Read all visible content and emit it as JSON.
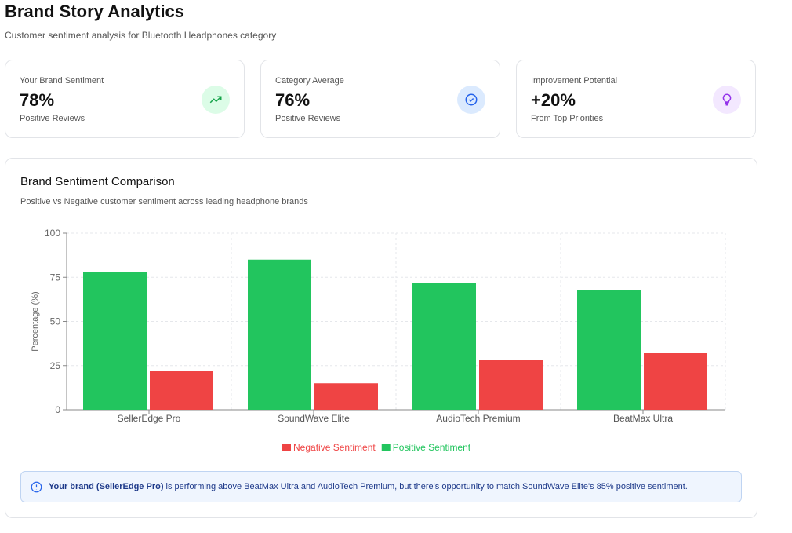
{
  "header": {
    "title": "Brand Story Analytics",
    "subtitle": "Customer sentiment analysis for Bluetooth Headphones category"
  },
  "cards": [
    {
      "label": "Your Brand Sentiment",
      "value": "78%",
      "note": "Positive Reviews",
      "icon": "trending-up-icon",
      "icon_bg": "#dcfce7",
      "icon_color": "#16a34a"
    },
    {
      "label": "Category Average",
      "value": "76%",
      "note": "Positive Reviews",
      "icon": "check-circle-icon",
      "icon_bg": "#dbeafe",
      "icon_color": "#2563eb"
    },
    {
      "label": "Improvement Potential",
      "value": "+20%",
      "note": "From Top Priorities",
      "icon": "lightbulb-icon",
      "icon_bg": "#f3e8ff",
      "icon_color": "#9333ea"
    }
  ],
  "panel": {
    "title": "Brand Sentiment Comparison",
    "subtitle": "Positive vs Negative customer sentiment across leading headphone brands"
  },
  "chart_data": {
    "type": "bar",
    "categories": [
      "SellerEdge Pro",
      "SoundWave Elite",
      "AudioTech Premium",
      "BeatMax Ultra"
    ],
    "series": [
      {
        "name": "Positive Sentiment",
        "values": [
          78,
          85,
          72,
          68
        ],
        "color": "#22c55e"
      },
      {
        "name": "Negative Sentiment",
        "values": [
          22,
          15,
          28,
          32
        ],
        "color": "#ef4444"
      }
    ],
    "ylabel": "Percentage (%)",
    "ylim": [
      0,
      100
    ],
    "yticks": [
      "0",
      "25",
      "50",
      "75",
      "100"
    ],
    "grid": true,
    "legend": "bottom",
    "legend_order": [
      "Negative Sentiment",
      "Positive Sentiment"
    ]
  },
  "insight": {
    "bold": "Your brand (SellerEdge Pro)",
    "text": "is performing above BeatMax Ultra and AudioTech Premium, but there's opportunity to match SoundWave Elite's 85% positive sentiment."
  }
}
